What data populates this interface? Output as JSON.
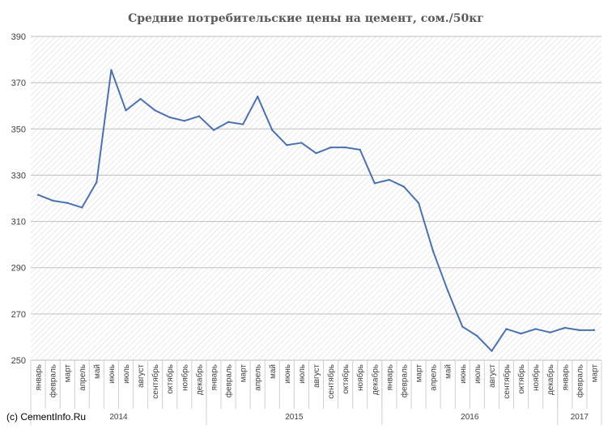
{
  "chart_data": {
    "type": "line",
    "title": "Средние потребительские цены на цемент, сом./50кг",
    "xlabel": "",
    "ylabel": "",
    "ylim": [
      250,
      390
    ],
    "yticks": [
      250,
      270,
      290,
      310,
      330,
      350,
      370,
      390
    ],
    "grid": "diagonal-hatch",
    "legend": "none",
    "line_color": "#4a72b0",
    "x": [
      "январь",
      "февраль",
      "март",
      "апрель",
      "май",
      "июнь",
      "июль",
      "август",
      "сентябрь",
      "октябрь",
      "ноябрь",
      "декабрь",
      "январь",
      "февраль",
      "март",
      "апрель",
      "май",
      "июнь",
      "июль",
      "август",
      "сентябрь",
      "октябрь",
      "ноябрь",
      "декабрь",
      "январь",
      "февраль",
      "март",
      "апрель",
      "май",
      "июнь",
      "июль",
      "август",
      "сентябрь",
      "октябрь",
      "ноябрь",
      "декабрь",
      "январь",
      "февраль",
      "март"
    ],
    "years": [
      {
        "label": "2014",
        "start": 0,
        "count": 12
      },
      {
        "label": "2015",
        "start": 12,
        "count": 12
      },
      {
        "label": "2016",
        "start": 24,
        "count": 12
      },
      {
        "label": "2017",
        "start": 36,
        "count": 3
      }
    ],
    "series": [
      {
        "values": [
          321.5,
          319,
          318,
          316,
          327,
          375.5,
          358,
          363,
          358,
          355,
          353.5,
          355.5,
          349.5,
          353,
          352,
          364,
          349.5,
          343,
          344,
          339.5,
          342,
          342,
          341,
          326.5,
          328,
          325,
          318,
          297,
          280,
          264.5,
          260.5,
          254,
          263.5,
          261.5,
          263.5,
          262,
          264,
          263,
          263
        ]
      }
    ]
  },
  "credit": "(c) CementInfo.Ru"
}
